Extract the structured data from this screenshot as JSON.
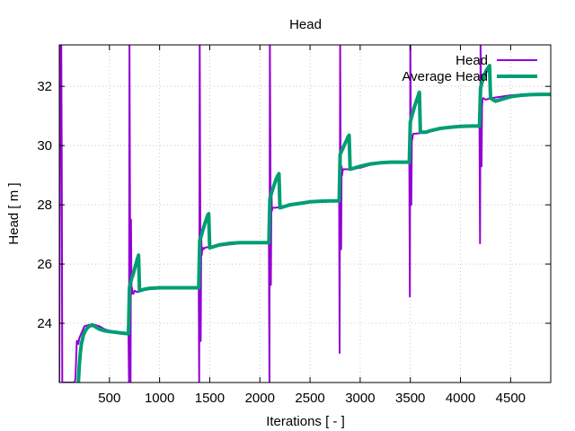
{
  "chart_data": {
    "type": "line",
    "title": "Head",
    "xlabel": "Iterations [ - ]",
    "ylabel": "Head [ m ]",
    "xlim": [
      0,
      4900
    ],
    "ylim": [
      22,
      33.4
    ],
    "xticks": [
      500,
      1000,
      1500,
      2000,
      2500,
      3000,
      3500,
      4000,
      4500
    ],
    "yticks": [
      24,
      26,
      28,
      30,
      32
    ],
    "grid": true,
    "legend_position": "top-right",
    "colors": {
      "head": "#9400d3",
      "average_head": "#009e73"
    },
    "series": [
      {
        "name": "Head",
        "x": [
          0,
          10,
          15,
          20,
          25,
          30,
          40,
          50,
          60,
          70,
          80,
          90,
          100,
          110,
          120,
          130,
          140,
          150,
          160,
          170,
          175,
          180,
          190,
          200,
          250,
          300,
          350,
          400,
          450,
          500,
          550,
          600,
          650,
          690,
          695,
          700,
          705,
          710,
          715,
          720,
          725,
          730,
          740,
          750,
          780,
          800,
          850,
          900,
          1000,
          1100,
          1200,
          1300,
          1390,
          1395,
          1400,
          1405,
          1410,
          1415,
          1420,
          1425,
          1430,
          1440,
          1450,
          1500,
          1600,
          1700,
          1800,
          1900,
          2000,
          2090,
          2095,
          2100,
          2105,
          2110,
          2115,
          2120,
          2125,
          2130,
          2150,
          2200,
          2300,
          2400,
          2500,
          2600,
          2700,
          2790,
          2795,
          2800,
          2805,
          2810,
          2815,
          2820,
          2825,
          2830,
          2850,
          2900,
          3000,
          3100,
          3200,
          3300,
          3400,
          3490,
          3495,
          3500,
          3505,
          3510,
          3515,
          3520,
          3525,
          3530,
          3550,
          3600,
          3700,
          3800,
          3900,
          4000,
          4100,
          4190,
          4195,
          4200,
          4205,
          4210,
          4215,
          4220,
          4225,
          4230,
          4250,
          4300,
          4400,
          4500,
          4600,
          4700,
          4800,
          4900
        ],
        "y": [
          22.0,
          33.4,
          30.0,
          33.4,
          29.0,
          22.0,
          22.0,
          22.0,
          22.0,
          22.0,
          22.0,
          22.0,
          22.0,
          22.0,
          22.0,
          22.0,
          22.0,
          22.0,
          22.1,
          23.0,
          23.4,
          23.4,
          23.3,
          23.5,
          23.9,
          23.95,
          23.95,
          23.9,
          23.8,
          23.75,
          23.72,
          23.7,
          23.68,
          23.68,
          22.0,
          33.4,
          28.0,
          22.0,
          27.5,
          25.0,
          25.2,
          25.0,
          25.0,
          25.1,
          25.05,
          25.1,
          25.15,
          25.2,
          25.22,
          25.22,
          25.22,
          25.22,
          25.22,
          22.0,
          33.4,
          28.8,
          23.4,
          27.0,
          26.3,
          26.5,
          26.55,
          26.5,
          26.55,
          26.58,
          26.62,
          26.66,
          26.7,
          26.72,
          26.72,
          26.72,
          22.0,
          33.4,
          29.5,
          25.3,
          28.5,
          27.8,
          27.9,
          27.9,
          27.9,
          27.92,
          27.98,
          28.05,
          28.1,
          28.12,
          28.13,
          28.13,
          23.0,
          33.4,
          30.0,
          26.5,
          29.3,
          29.0,
          29.15,
          29.2,
          29.2,
          29.2,
          29.25,
          29.35,
          29.4,
          29.43,
          29.44,
          29.44,
          24.9,
          33.4,
          31.0,
          28.0,
          30.3,
          30.2,
          30.35,
          30.4,
          30.4,
          30.42,
          30.5,
          30.58,
          30.62,
          30.65,
          30.66,
          30.66,
          26.7,
          33.4,
          32.0,
          29.3,
          31.3,
          31.55,
          31.6,
          31.6,
          31.55,
          31.6,
          31.65,
          31.7,
          31.72,
          31.73,
          31.73,
          31.73
        ]
      },
      {
        "name": "Average Head",
        "x": [
          190,
          200,
          210,
          220,
          240,
          260,
          280,
          300,
          330,
          350,
          400,
          450,
          500,
          550,
          600,
          650,
          690,
          700,
          720,
          740,
          760,
          780,
          790,
          800,
          850,
          900,
          1000,
          1100,
          1200,
          1300,
          1390,
          1400,
          1420,
          1440,
          1460,
          1480,
          1490,
          1500,
          1550,
          1600,
          1700,
          1800,
          1900,
          2000,
          2090,
          2100,
          2120,
          2140,
          2160,
          2180,
          2190,
          2200,
          2250,
          2300,
          2400,
          2500,
          2600,
          2700,
          2790,
          2800,
          2820,
          2840,
          2860,
          2880,
          2890,
          2900,
          2950,
          3000,
          3100,
          3200,
          3300,
          3400,
          3490,
          3500,
          3520,
          3540,
          3560,
          3580,
          3590,
          3600,
          3650,
          3700,
          3800,
          3900,
          4000,
          4100,
          4190,
          4200,
          4220,
          4240,
          4260,
          4280,
          4290,
          4300,
          4350,
          4400,
          4500,
          4600,
          4700,
          4800,
          4900
        ],
        "y": [
          22.0,
          22.6,
          23.0,
          23.3,
          23.6,
          23.75,
          23.85,
          23.9,
          23.95,
          23.9,
          23.8,
          23.75,
          23.72,
          23.7,
          23.68,
          23.66,
          23.65,
          25.2,
          25.5,
          25.7,
          25.95,
          26.2,
          26.3,
          25.1,
          25.15,
          25.18,
          25.2,
          25.2,
          25.2,
          25.2,
          25.2,
          26.8,
          27.0,
          27.25,
          27.45,
          27.65,
          27.7,
          26.55,
          26.6,
          26.65,
          26.7,
          26.72,
          26.72,
          26.72,
          26.72,
          28.2,
          28.45,
          28.65,
          28.85,
          29.0,
          29.05,
          27.9,
          27.95,
          28.0,
          28.05,
          28.1,
          28.12,
          28.13,
          28.13,
          29.7,
          29.85,
          30.0,
          30.15,
          30.3,
          30.35,
          29.2,
          29.25,
          29.3,
          29.38,
          29.42,
          29.44,
          29.44,
          29.44,
          30.8,
          31.05,
          31.3,
          31.5,
          31.7,
          31.8,
          30.45,
          30.45,
          30.5,
          30.58,
          30.62,
          30.65,
          30.66,
          30.66,
          31.95,
          32.2,
          32.4,
          32.55,
          32.65,
          32.7,
          31.6,
          31.5,
          31.55,
          31.65,
          31.7,
          31.72,
          31.73,
          31.73
        ]
      }
    ]
  }
}
